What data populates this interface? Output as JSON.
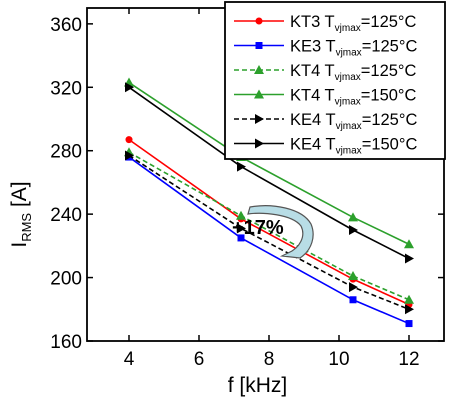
{
  "chart_data": {
    "type": "line",
    "xlabel": "f [kHz]",
    "ylabel_main": "I",
    "ylabel_sub": "RMS",
    "ylabel_unit": " [A]",
    "xlim": [
      2.8,
      13.0
    ],
    "ylim": [
      160,
      370
    ],
    "xticks": [
      4,
      6,
      8,
      10,
      12
    ],
    "yticks": [
      160,
      200,
      240,
      280,
      320,
      360
    ],
    "grid": false,
    "legend_position": "top-right",
    "annotation": "+17%",
    "x": [
      4,
      7.2,
      10.4,
      12
    ],
    "series": [
      {
        "name": "KT3",
        "name_sub": "vjmax",
        "name_tail": "=125°C",
        "label_prefix": " T",
        "color": "#ff0000",
        "dash": "solid",
        "marker": "circle",
        "values": [
          287,
          237,
          199,
          183
        ]
      },
      {
        "name": "KE3",
        "name_sub": "vjmax",
        "name_tail": "=125°C",
        "label_prefix": " T",
        "color": "#0000ff",
        "dash": "solid",
        "marker": "square",
        "values": [
          276,
          225,
          186,
          171
        ]
      },
      {
        "name": "KT4",
        "name_sub": "vjmax",
        "name_tail": "=125°C",
        "label_prefix": " T",
        "color": "#2ca02c",
        "dash": "dashed",
        "marker": "triangle-up",
        "values": [
          279,
          239,
          201,
          186
        ]
      },
      {
        "name": "KT4",
        "name_sub": "vjmax",
        "name_tail": "=150°C",
        "label_prefix": " T",
        "color": "#2ca02c",
        "dash": "solid",
        "marker": "triangle-up",
        "values": [
          323,
          276,
          238,
          221
        ]
      },
      {
        "name": "KE4",
        "name_sub": "vjmax",
        "name_tail": "=125°C",
        "label_prefix": " T",
        "color": "#000000",
        "dash": "dashed",
        "marker": "triangle-right",
        "values": [
          277,
          231,
          194,
          180
        ]
      },
      {
        "name": "KE4",
        "name_sub": "vjmax",
        "name_tail": "=150°C",
        "label_prefix": " T",
        "color": "#000000",
        "dash": "solid",
        "marker": "triangle-right",
        "values": [
          320,
          270,
          230,
          212
        ]
      }
    ]
  }
}
